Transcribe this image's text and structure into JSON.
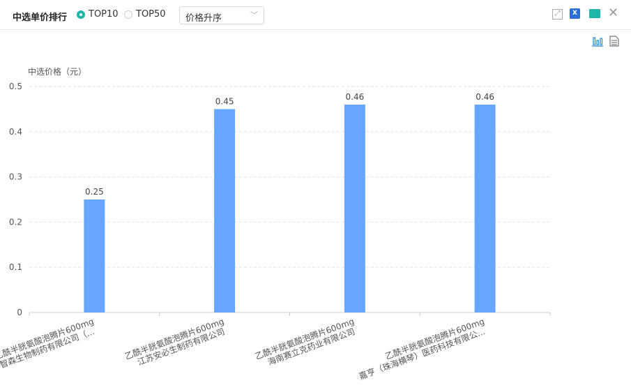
{
  "header": {
    "title": "中选单价排行",
    "radios": [
      {
        "label": "TOP10",
        "checked": true
      },
      {
        "label": "TOP50",
        "checked": false
      }
    ],
    "sort_select": "价格升序"
  },
  "icons": [
    "fullscreen-icon",
    "export-excel-icon",
    "save-image-icon",
    "close-icon",
    "bar-chart-view-icon",
    "data-view-icon"
  ],
  "colors": {
    "bar": "#66a6ff",
    "accent": "#1fb5a8"
  },
  "chart_data": {
    "type": "bar",
    "ylabel": "中选价格（元）",
    "ylim": [
      0,
      0.5
    ],
    "yticks": [
      0,
      0.1,
      0.2,
      0.3,
      0.4,
      0.5
    ],
    "grid": true,
    "categories": [
      [
        "乙酰半胱氨酸泡腾片600mg",
        "智森生物制药有限公司（..."
      ],
      [
        "乙酰半胱氨酸泡腾片600mg",
        "江苏安必生制药有限公司"
      ],
      [
        "乙酰半胱氨酸泡腾片600mg",
        "海南赛立克药业有限公司"
      ],
      [
        "乙酰半胱氨酸泡腾片600mg",
        "嘉亨（珠海横琴）医药科技有限公..."
      ]
    ],
    "values": [
      0.25,
      0.45,
      0.46,
      0.46
    ]
  }
}
